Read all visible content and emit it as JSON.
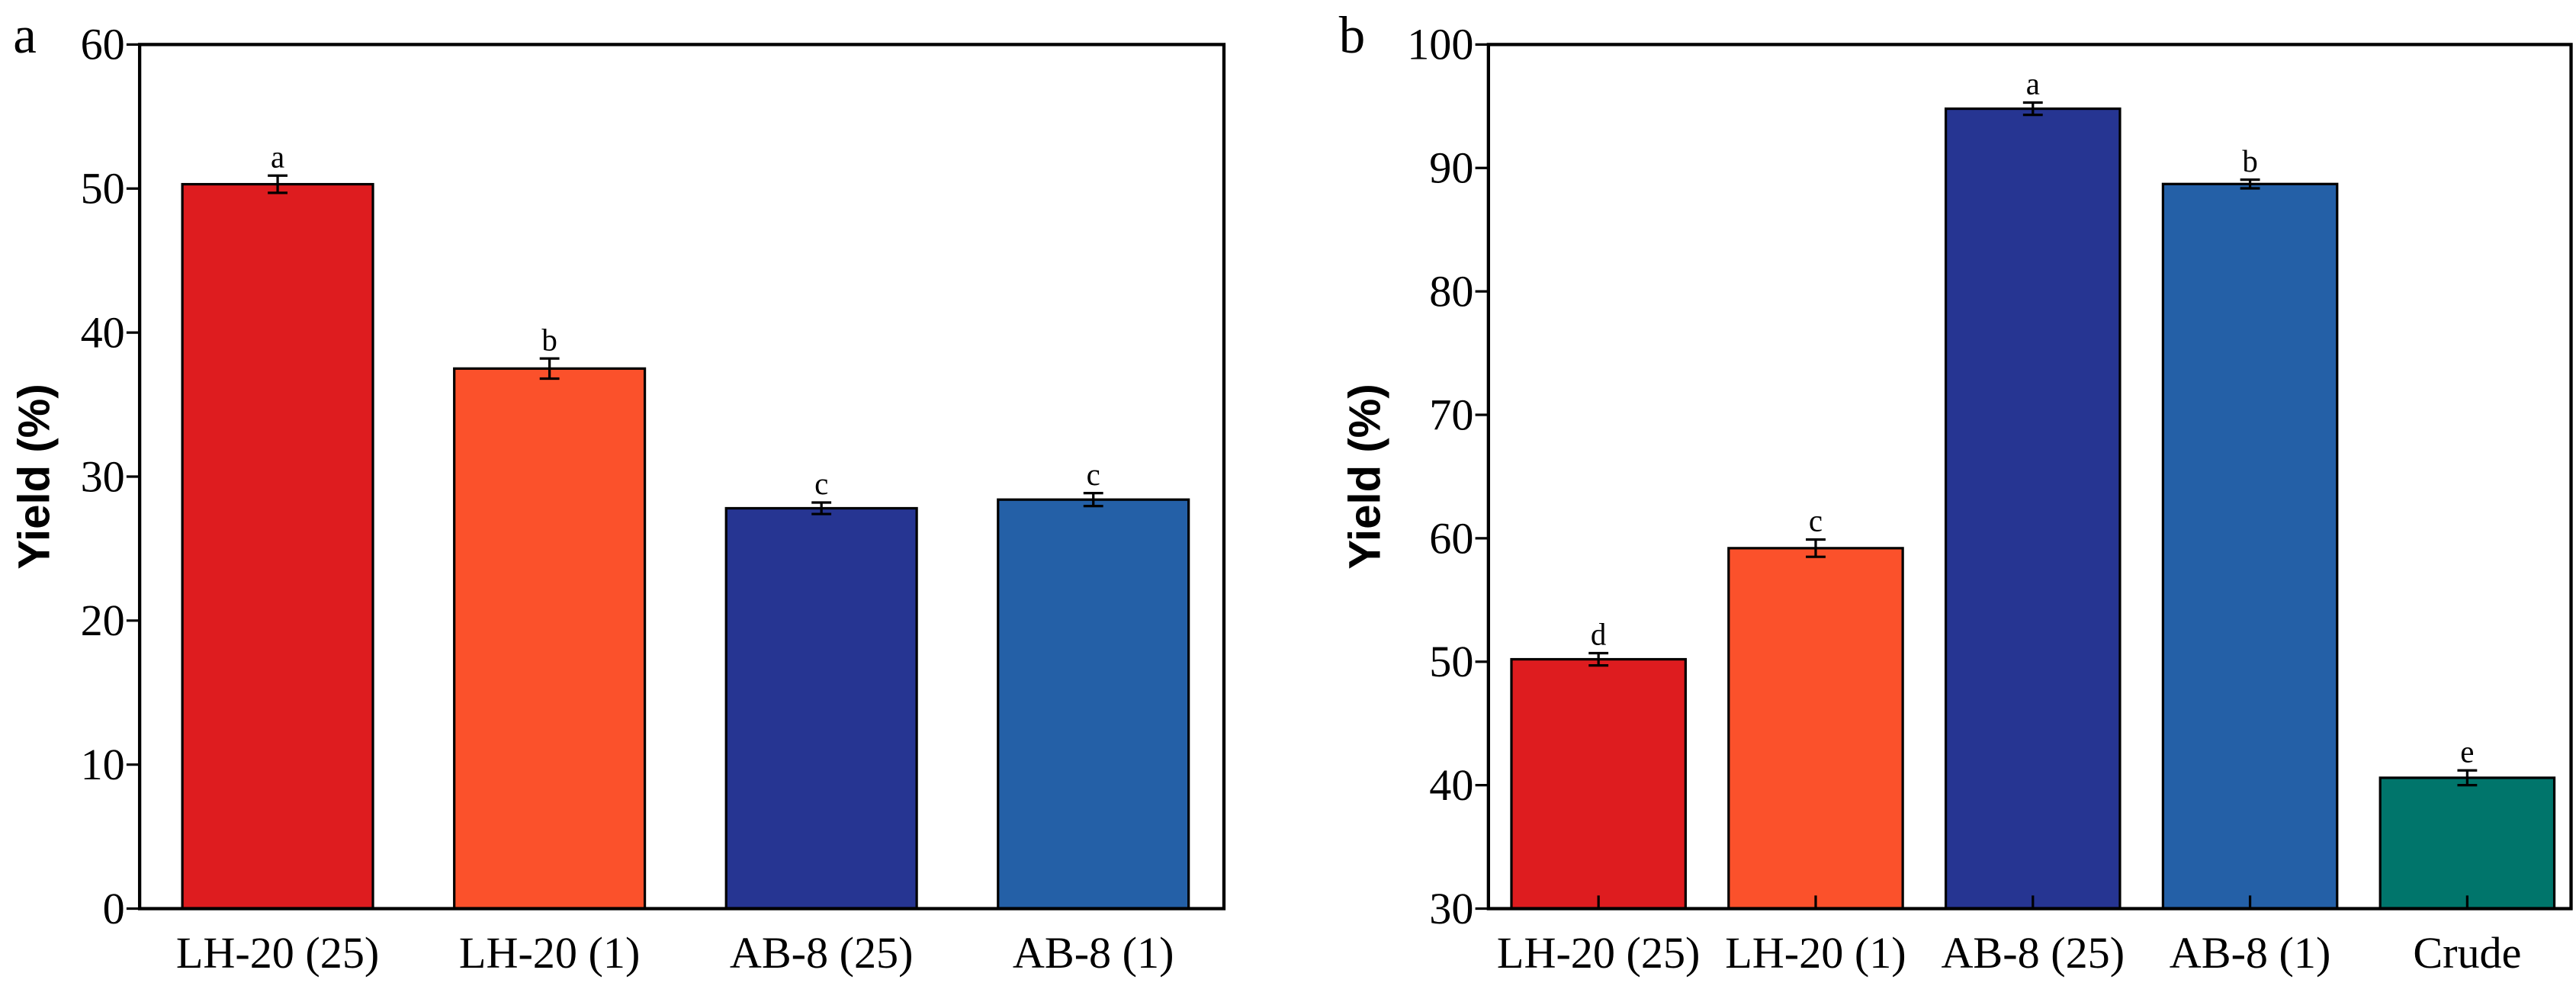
{
  "chart_data": [
    {
      "type": "bar",
      "panel_label": "a",
      "title": "",
      "xlabel": "",
      "ylabel": "Yield (%)",
      "ylim": [
        0,
        60
      ],
      "yticks": [
        "0",
        "10",
        "20",
        "30",
        "40",
        "50",
        "60"
      ],
      "grid": false,
      "categories": [
        "LH-20 (25)",
        "LH-20 (1)",
        "AB-8 (25)",
        "AB-8 (1)"
      ],
      "values": [
        50.3,
        37.5,
        27.8,
        28.4
      ],
      "errors": [
        0.6,
        0.7,
        0.4,
        0.45
      ],
      "significance": [
        "a",
        "b",
        "c",
        "c"
      ],
      "colors": [
        "#de1c1f",
        "#fb512b",
        "#263592",
        "#2460a7"
      ]
    },
    {
      "type": "bar",
      "panel_label": "b",
      "title": "",
      "xlabel": "",
      "ylabel": "Yield (%)",
      "ylim": [
        30,
        100
      ],
      "yticks": [
        "30",
        "40",
        "50",
        "60",
        "70",
        "80",
        "90",
        "100"
      ],
      "grid": false,
      "categories": [
        "LH-20 (25)",
        "LH-20 (1)",
        "AB-8 (25)",
        "AB-8 (1)",
        "Crude"
      ],
      "values": [
        50.2,
        59.2,
        94.8,
        88.7,
        40.6
      ],
      "errors": [
        0.5,
        0.7,
        0.5,
        0.35,
        0.6
      ],
      "significance": [
        "d",
        "c",
        "a",
        "b",
        "e"
      ],
      "colors": [
        "#de1c1f",
        "#fb512b",
        "#263592",
        "#2460a7",
        "#00756b"
      ]
    }
  ]
}
